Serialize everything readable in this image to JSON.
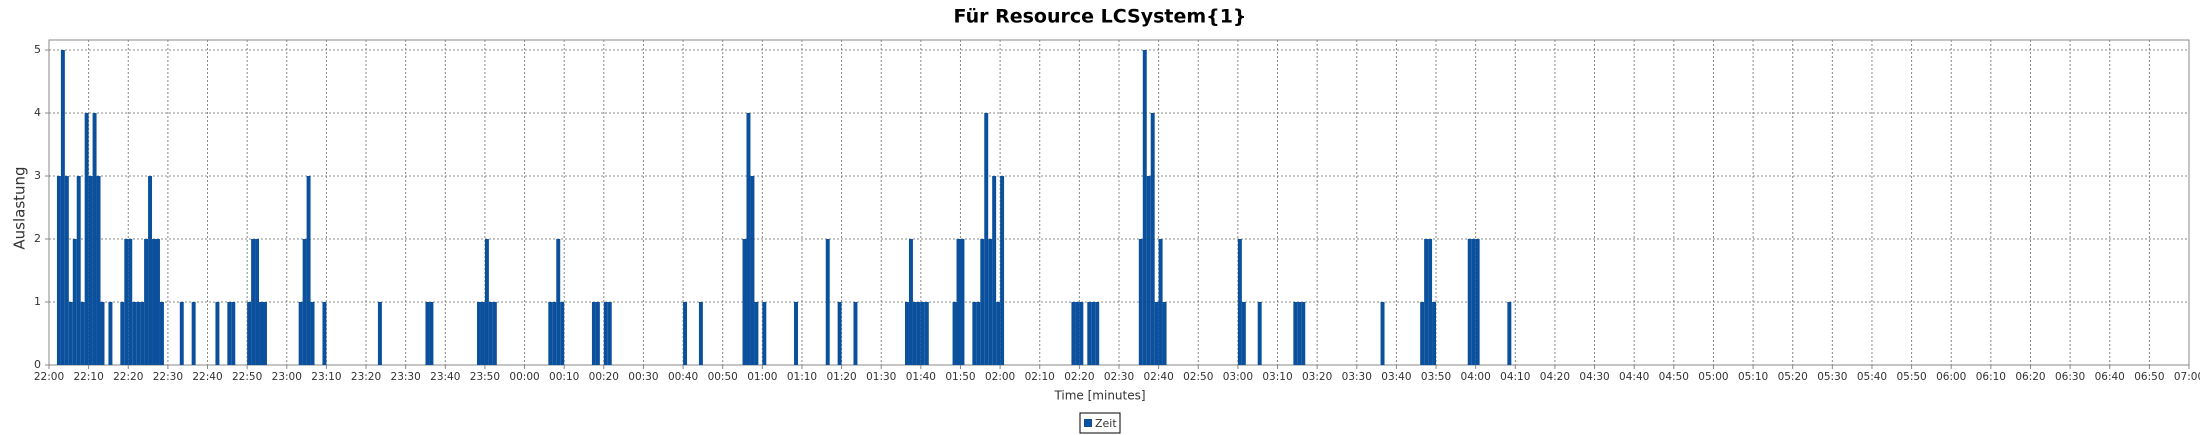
{
  "chart_data": {
    "type": "bar",
    "title": "Für Resource LCSystem{1}",
    "xlabel": "Time [minutes]",
    "ylabel": "Auslastung",
    "series": [
      {
        "name": "Zeit",
        "color": "#0b509c",
        "x": [
          "22:02",
          "22:03",
          "22:04",
          "22:05",
          "22:06",
          "22:07",
          "22:08",
          "22:09",
          "22:10",
          "22:11",
          "22:12",
          "22:13",
          "22:15",
          "22:18",
          "22:19",
          "22:20",
          "22:21",
          "22:22",
          "22:23",
          "22:24",
          "22:25",
          "22:26",
          "22:27",
          "22:28",
          "22:33",
          "22:36",
          "22:42",
          "22:45",
          "22:46",
          "22:50",
          "22:51",
          "22:52",
          "22:53",
          "22:54",
          "23:03",
          "23:04",
          "23:05",
          "23:06",
          "23:09",
          "23:23",
          "23:35",
          "23:36",
          "23:48",
          "23:49",
          "23:50",
          "23:51",
          "23:52",
          "00:06",
          "00:07",
          "00:08",
          "00:09",
          "00:17",
          "00:18",
          "00:20",
          "00:21",
          "00:40",
          "00:44",
          "00:55",
          "00:56",
          "00:57",
          "00:58",
          "01:00",
          "01:08",
          "01:16",
          "01:19",
          "01:23",
          "01:36",
          "01:37",
          "01:38",
          "01:39",
          "01:40",
          "01:41",
          "01:48",
          "01:49",
          "01:50",
          "01:53",
          "01:54",
          "01:55",
          "01:56",
          "01:57",
          "01:58",
          "01:59",
          "02:00",
          "02:18",
          "02:19",
          "02:20",
          "02:22",
          "02:23",
          "02:24",
          "02:35",
          "02:36",
          "02:37",
          "02:38",
          "02:39",
          "02:40",
          "02:41",
          "03:00",
          "03:01",
          "03:05",
          "03:14",
          "03:15",
          "03:16",
          "03:36",
          "03:46",
          "03:47",
          "03:48",
          "03:49",
          "03:58",
          "03:59",
          "04:00",
          "04:08"
        ],
        "values": [
          3,
          5,
          3,
          1,
          2,
          3,
          1,
          4,
          3,
          4,
          3,
          1,
          1,
          1,
          2,
          2,
          1,
          1,
          1,
          2,
          3,
          2,
          2,
          1,
          1,
          1,
          1,
          1,
          1,
          1,
          2,
          2,
          1,
          1,
          1,
          2,
          3,
          1,
          1,
          1,
          1,
          1,
          1,
          1,
          2,
          1,
          1,
          1,
          1,
          2,
          1,
          1,
          1,
          1,
          1,
          1,
          1,
          2,
          4,
          3,
          1,
          1,
          1,
          2,
          1,
          1,
          1,
          2,
          1,
          1,
          1,
          1,
          1,
          2,
          2,
          1,
          1,
          2,
          4,
          2,
          3,
          1,
          3,
          1,
          1,
          1,
          1,
          1,
          1,
          2,
          5,
          3,
          4,
          1,
          2,
          1,
          2,
          1,
          1,
          1,
          1,
          1,
          1,
          1,
          2,
          2,
          1,
          2,
          2,
          2,
          1
        ]
      }
    ],
    "xlim": [
      "22:00",
      "07:00"
    ],
    "xticks": [
      "22:00",
      "22:10",
      "22:20",
      "22:30",
      "22:40",
      "22:50",
      "23:00",
      "23:10",
      "23:20",
      "23:30",
      "23:40",
      "23:50",
      "00:00",
      "00:10",
      "00:20",
      "00:30",
      "00:40",
      "00:50",
      "01:00",
      "01:10",
      "01:20",
      "01:30",
      "01:40",
      "01:50",
      "02:00",
      "02:10",
      "02:20",
      "02:30",
      "02:40",
      "02:50",
      "03:00",
      "03:10",
      "03:20",
      "03:30",
      "03:40",
      "03:50",
      "04:00",
      "04:10",
      "04:20",
      "04:30",
      "04:40",
      "04:50",
      "05:00",
      "05:10",
      "05:20",
      "05:30",
      "05:40",
      "05:50",
      "06:00",
      "06:10",
      "06:20",
      "06:30",
      "06:40",
      "06:50",
      "07:00"
    ],
    "ylim": [
      0,
      5
    ],
    "yticks": [
      0,
      1,
      2,
      3,
      4,
      5
    ],
    "grid": true
  }
}
